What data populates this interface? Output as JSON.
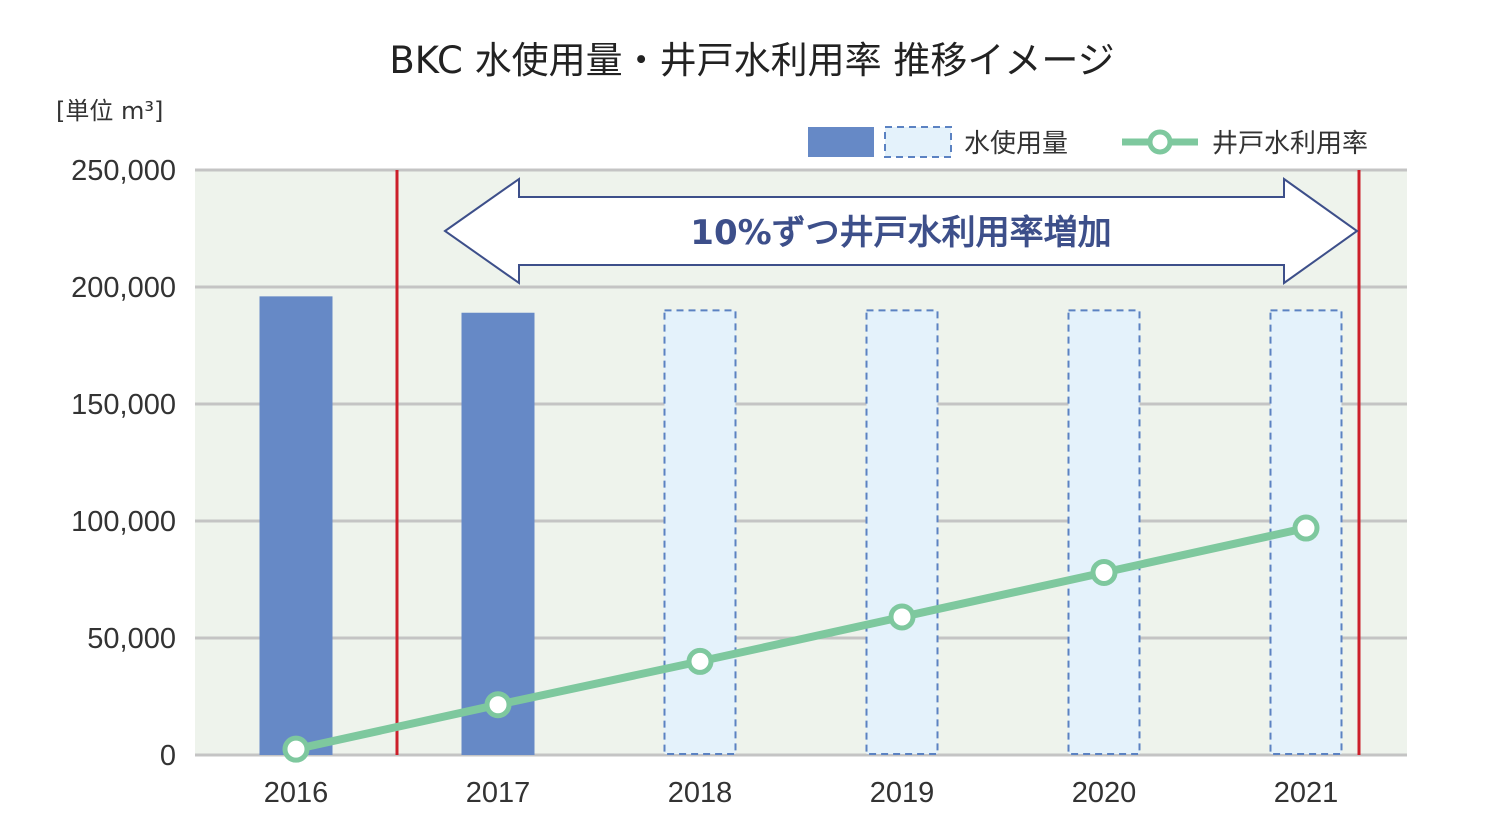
{
  "chart_data": {
    "type": "bar",
    "title": "BKC 水使用量・井戸水利用率 推移イメージ",
    "unit_label": "[単位 m³]",
    "categories": [
      "2016",
      "2017",
      "2018",
      "2019",
      "2020",
      "2021"
    ],
    "series": [
      {
        "name": "水使用量",
        "type": "bar",
        "values": [
          196000,
          189000,
          190000,
          190000,
          190000,
          190000
        ],
        "style": [
          "solid",
          "solid",
          "dashed",
          "dashed",
          "dashed",
          "dashed"
        ]
      },
      {
        "name": "井戸水利用率",
        "type": "line",
        "values": [
          2500,
          21500,
          40000,
          59000,
          78000,
          97000
        ]
      }
    ],
    "ylim": [
      0,
      250000
    ],
    "yticks": [
      "0",
      "50,000",
      "100,000",
      "150,000",
      "200,000",
      "250,000"
    ],
    "grid": true,
    "legend_position": "top-right",
    "annotation": "10%ずつ井戸水利用率増加",
    "colors": {
      "bar_solid": "#6689c6",
      "bar_dashed_fill": "#e4f2fb",
      "bar_dashed_stroke": "#5b82c2",
      "line": "#7ec89e",
      "plot_bg": "#eef3ec",
      "grid": "#c4c4c4",
      "marker_line": "#cc1f2a",
      "annotation": "#3d4f8a"
    }
  }
}
